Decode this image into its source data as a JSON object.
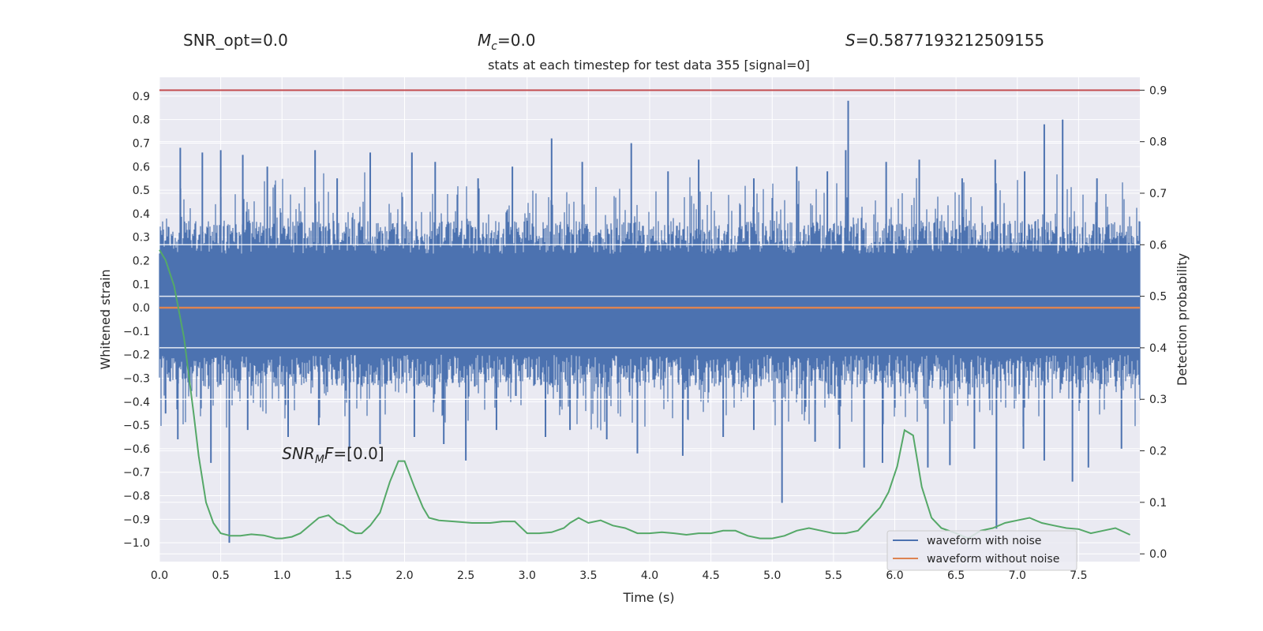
{
  "header": {
    "snr_opt_text": "SNR_opt=0.0",
    "mc_symbol": "M",
    "mc_sub": "c",
    "mc_value": "=0.0",
    "s_symbol": "S",
    "s_value": "=0.5877193212509155",
    "title": "stats at each timestep for test data 355 [signal=0]"
  },
  "annotation": {
    "snr_symbol": "SNR",
    "snr_sub": "M",
    "snr_f": "F",
    "snr_value": "=[0.0]",
    "x": 1.0,
    "y": -0.62
  },
  "chart_data": {
    "type": "line",
    "title": "stats at each timestep for test data 355 [signal=0]",
    "xlabel": "Time (s)",
    "ylabel": "Whitened strain",
    "y2label": "Detection probability",
    "xlim": [
      0.0,
      8.0
    ],
    "ylim": [
      -1.08,
      0.98
    ],
    "y2lim": [
      -0.015,
      0.925
    ],
    "x_ticks": [
      "0.0",
      "0.5",
      "1.0",
      "1.5",
      "2.0",
      "2.5",
      "3.0",
      "3.5",
      "4.0",
      "4.5",
      "5.0",
      "5.5",
      "6.0",
      "6.5",
      "7.0",
      "7.5"
    ],
    "x_tick_values": [
      0.0,
      0.5,
      1.0,
      1.5,
      2.0,
      2.5,
      3.0,
      3.5,
      4.0,
      4.5,
      5.0,
      5.5,
      6.0,
      6.5,
      7.0,
      7.5
    ],
    "y_ticks": [
      "0.9",
      "0.8",
      "0.7",
      "0.6",
      "0.5",
      "0.4",
      "0.3",
      "0.2",
      "0.1",
      "0.0",
      "−0.1",
      "−0.2",
      "−0.3",
      "−0.4",
      "−0.5",
      "−0.6",
      "−0.7",
      "−0.8",
      "−0.9",
      "−1.0"
    ],
    "y_tick_values": [
      0.9,
      0.8,
      0.7,
      0.6,
      0.5,
      0.4,
      0.3,
      0.2,
      0.1,
      0.0,
      -0.1,
      -0.2,
      -0.3,
      -0.4,
      -0.5,
      -0.6,
      -0.7,
      -0.8,
      -0.9,
      -1.0
    ],
    "y2_ticks": [
      "0.9",
      "0.8",
      "0.7",
      "0.6",
      "0.5",
      "0.4",
      "0.3",
      "0.2",
      "0.1",
      "0.0"
    ],
    "y2_tick_values": [
      0.9,
      0.8,
      0.7,
      0.6,
      0.5,
      0.4,
      0.3,
      0.2,
      0.1,
      0.0
    ],
    "grid": true,
    "legend_position": "bottom-right",
    "series": [
      {
        "name": "waveform with noise",
        "color": "#4c72b0",
        "axis": "left",
        "band_y": [
          -0.2,
          0.23
        ],
        "spikes": [
          {
            "x": 0.17,
            "y": 0.68
          },
          {
            "x": 0.35,
            "y": 0.66
          },
          {
            "x": 0.5,
            "y": 0.67
          },
          {
            "x": 0.68,
            "y": 0.65
          },
          {
            "x": 0.88,
            "y": 0.6
          },
          {
            "x": 1.27,
            "y": 0.67
          },
          {
            "x": 1.45,
            "y": 0.55
          },
          {
            "x": 1.72,
            "y": 0.66
          },
          {
            "x": 2.06,
            "y": 0.66
          },
          {
            "x": 2.25,
            "y": 0.62
          },
          {
            "x": 2.6,
            "y": 0.55
          },
          {
            "x": 2.88,
            "y": 0.6
          },
          {
            "x": 3.2,
            "y": 0.72
          },
          {
            "x": 3.45,
            "y": 0.62
          },
          {
            "x": 3.85,
            "y": 0.7
          },
          {
            "x": 4.15,
            "y": 0.58
          },
          {
            "x": 4.4,
            "y": 0.63
          },
          {
            "x": 4.85,
            "y": 0.55
          },
          {
            "x": 5.2,
            "y": 0.6
          },
          {
            "x": 5.45,
            "y": 0.58
          },
          {
            "x": 5.62,
            "y": 0.88
          },
          {
            "x": 5.6,
            "y": 0.67
          },
          {
            "x": 5.93,
            "y": 0.62
          },
          {
            "x": 6.2,
            "y": 0.63
          },
          {
            "x": 6.55,
            "y": 0.55
          },
          {
            "x": 6.82,
            "y": 0.63
          },
          {
            "x": 7.06,
            "y": 0.58
          },
          {
            "x": 7.22,
            "y": 0.78
          },
          {
            "x": 7.37,
            "y": 0.8
          },
          {
            "x": 7.65,
            "y": 0.55
          },
          {
            "x": 0.05,
            "y": -0.45
          },
          {
            "x": 0.15,
            "y": -0.56
          },
          {
            "x": 0.42,
            "y": -0.66
          },
          {
            "x": 0.57,
            "y": -1.0
          },
          {
            "x": 0.72,
            "y": -0.52
          },
          {
            "x": 1.05,
            "y": -0.55
          },
          {
            "x": 1.3,
            "y": -0.5
          },
          {
            "x": 1.55,
            "y": -0.6
          },
          {
            "x": 1.8,
            "y": -0.58
          },
          {
            "x": 2.08,
            "y": -0.55
          },
          {
            "x": 2.32,
            "y": -0.58
          },
          {
            "x": 2.5,
            "y": -0.65
          },
          {
            "x": 2.75,
            "y": -0.52
          },
          {
            "x": 3.15,
            "y": -0.55
          },
          {
            "x": 3.35,
            "y": -0.52
          },
          {
            "x": 3.65,
            "y": -0.56
          },
          {
            "x": 3.9,
            "y": -0.62
          },
          {
            "x": 4.27,
            "y": -0.63
          },
          {
            "x": 4.6,
            "y": -0.55
          },
          {
            "x": 4.85,
            "y": -0.52
          },
          {
            "x": 5.08,
            "y": -0.83
          },
          {
            "x": 5.35,
            "y": -0.57
          },
          {
            "x": 5.55,
            "y": -0.6
          },
          {
            "x": 5.75,
            "y": -0.68
          },
          {
            "x": 5.9,
            "y": -0.66
          },
          {
            "x": 6.27,
            "y": -0.68
          },
          {
            "x": 6.45,
            "y": -0.67
          },
          {
            "x": 6.65,
            "y": -0.6
          },
          {
            "x": 6.83,
            "y": -0.94
          },
          {
            "x": 7.05,
            "y": -0.6
          },
          {
            "x": 7.22,
            "y": -0.65
          },
          {
            "x": 7.45,
            "y": -0.74
          },
          {
            "x": 7.58,
            "y": -0.68
          },
          {
            "x": 7.85,
            "y": -0.6
          }
        ]
      },
      {
        "name": "waveform without noise",
        "color": "#dd8452",
        "axis": "left",
        "x": [
          0.0,
          8.0
        ],
        "y": [
          0.0,
          0.0
        ]
      },
      {
        "name": "",
        "color": "#55a868",
        "axis": "right",
        "x": [
          0.0,
          0.05,
          0.12,
          0.2,
          0.28,
          0.32,
          0.38,
          0.44,
          0.5,
          0.58,
          0.66,
          0.75,
          0.85,
          0.95,
          1.0,
          1.08,
          1.15,
          1.25,
          1.3,
          1.38,
          1.45,
          1.5,
          1.55,
          1.6,
          1.65,
          1.72,
          1.8,
          1.88,
          1.95,
          2.0,
          2.08,
          2.15,
          2.2,
          2.28,
          2.4,
          2.55,
          2.7,
          2.8,
          2.9,
          3.0,
          3.1,
          3.2,
          3.3,
          3.35,
          3.42,
          3.5,
          3.6,
          3.7,
          3.8,
          3.9,
          4.0,
          4.1,
          4.2,
          4.3,
          4.4,
          4.5,
          4.6,
          4.7,
          4.8,
          4.9,
          5.0,
          5.1,
          5.2,
          5.3,
          5.4,
          5.5,
          5.6,
          5.7,
          5.8,
          5.88,
          5.95,
          6.02,
          6.08,
          6.15,
          6.22,
          6.3,
          6.38,
          6.5,
          6.6,
          6.7,
          6.8,
          6.9,
          7.0,
          7.1,
          7.2,
          7.3,
          7.4,
          7.5,
          7.6,
          7.7,
          7.8,
          7.92
        ],
        "y": [
          0.59,
          0.57,
          0.52,
          0.42,
          0.27,
          0.19,
          0.1,
          0.06,
          0.04,
          0.035,
          0.035,
          0.038,
          0.036,
          0.03,
          0.03,
          0.033,
          0.04,
          0.06,
          0.07,
          0.075,
          0.06,
          0.055,
          0.045,
          0.04,
          0.04,
          0.055,
          0.08,
          0.14,
          0.18,
          0.18,
          0.13,
          0.09,
          0.07,
          0.065,
          0.063,
          0.06,
          0.06,
          0.063,
          0.063,
          0.04,
          0.04,
          0.042,
          0.05,
          0.06,
          0.07,
          0.06,
          0.065,
          0.055,
          0.05,
          0.04,
          0.04,
          0.042,
          0.04,
          0.037,
          0.04,
          0.04,
          0.045,
          0.045,
          0.035,
          0.03,
          0.03,
          0.035,
          0.045,
          0.05,
          0.045,
          0.04,
          0.04,
          0.045,
          0.07,
          0.09,
          0.12,
          0.17,
          0.24,
          0.23,
          0.13,
          0.07,
          0.05,
          0.04,
          0.03,
          0.045,
          0.05,
          0.06,
          0.065,
          0.07,
          0.06,
          0.055,
          0.05,
          0.048,
          0.04,
          0.045,
          0.05,
          0.037
        ]
      }
    ],
    "hline_right": {
      "y": 0.9,
      "color": "#c44e52"
    }
  }
}
